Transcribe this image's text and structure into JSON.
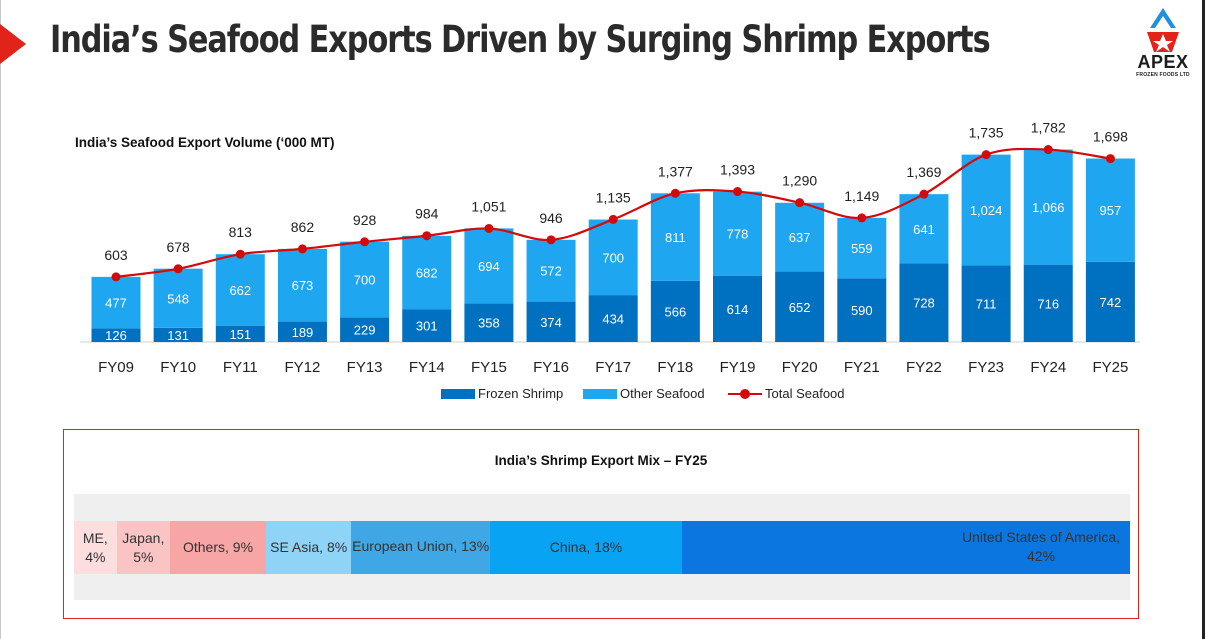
{
  "page": {
    "title": "India’s Seafood Exports Driven by Surging Shrimp Exports"
  },
  "logo": {
    "name": "APEX",
    "subtitle": "FROZEN FOODS LTD"
  },
  "colors": {
    "accent_red": "#e2231a",
    "frozen_shrimp": "#0070c0",
    "other_seafood": "#1ea7f0",
    "total_line": "#d20a0a"
  },
  "chart_data": [
    {
      "type": "bar",
      "title": "India’s Seafood Export Volume (‘000 MT)",
      "categories": [
        "FY09",
        "FY10",
        "FY11",
        "FY12",
        "FY13",
        "FY14",
        "FY15",
        "FY16",
        "FY17",
        "FY18",
        "FY19",
        "FY20",
        "FY21",
        "FY22",
        "FY23",
        "FY24",
        "FY25"
      ],
      "stacked": true,
      "series": [
        {
          "name": "Frozen Shrimp",
          "color": "#0070c0",
          "values": [
            126,
            131,
            151,
            189,
            229,
            301,
            358,
            374,
            434,
            566,
            614,
            652,
            590,
            728,
            711,
            716,
            742
          ]
        },
        {
          "name": "Other Seafood",
          "color": "#1ea7f0",
          "values": [
            477,
            548,
            662,
            673,
            700,
            682,
            694,
            572,
            700,
            811,
            778,
            637,
            559,
            641,
            1024,
            1066,
            957
          ]
        },
        {
          "name": "Total Seafood",
          "type": "line",
          "color": "#d20a0a",
          "values": [
            603,
            678,
            813,
            862,
            928,
            984,
            1051,
            946,
            1135,
            1377,
            1393,
            1290,
            1149,
            1369,
            1735,
            1782,
            1698
          ]
        }
      ],
      "value_labels": {
        "Frozen Shrimp": [
          "126",
          "131",
          "151",
          "189",
          "229",
          "301",
          "358",
          "374",
          "434",
          "566",
          "614",
          "652",
          "590",
          "728",
          "711",
          "716",
          "742"
        ],
        "Other Seafood": [
          "477",
          "548",
          "662",
          "673",
          "700",
          "682",
          "694",
          "572",
          "700",
          "811",
          "778",
          "637",
          "559",
          "641",
          "1,024",
          "1,066",
          "957"
        ],
        "Total Seafood": [
          "603",
          "678",
          "813",
          "862",
          "928",
          "984",
          "1,051",
          "946",
          "1,135",
          "1,377",
          "1,393",
          "1,290",
          "1,149",
          "1,369",
          "1,735",
          "1,782",
          "1,698"
        ]
      },
      "legend_position": "bottom",
      "grid": false
    },
    {
      "type": "bar",
      "title": "India’s Shrimp Export Mix – FY25",
      "orientation": "horizontal-stacked-100",
      "categories": [
        "ME",
        "Japan",
        "Others",
        "SE Asia",
        "European Union",
        "China",
        "United States of America"
      ],
      "values": [
        4,
        5,
        9,
        8,
        13,
        18,
        42
      ],
      "labels": [
        "ME,\n4%",
        "Japan,\n5%",
        "Others, 9%",
        "SE Asia, 8%",
        "European Union, 13%",
        "China, 18%",
        "United States of America,\n42%"
      ],
      "colors": [
        "#fcdede",
        "#fbc4c4",
        "#f8a5a5",
        "#8fd3f7",
        "#3fa7e6",
        "#09a3f4",
        "#0b76e0"
      ]
    }
  ]
}
